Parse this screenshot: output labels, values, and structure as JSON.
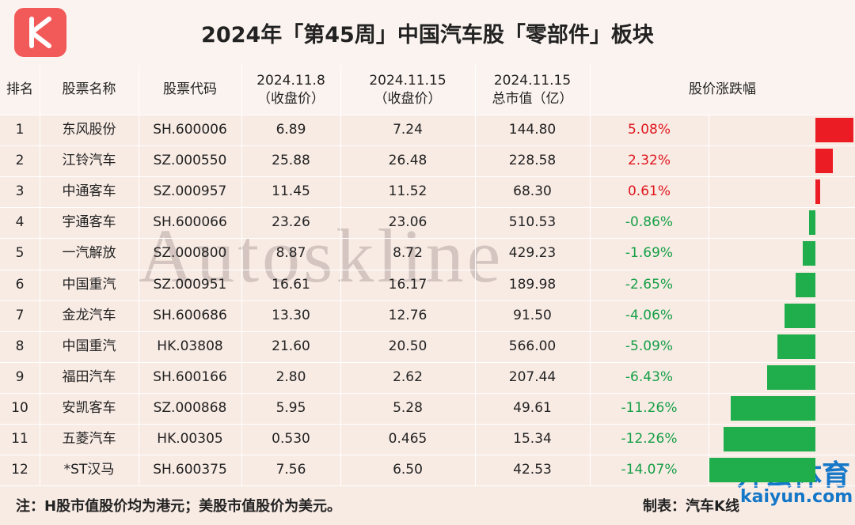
{
  "header": {
    "title": "2024年「第45周」中国汽车股「零部件」板块"
  },
  "table": {
    "columns": [
      [
        "排名"
      ],
      [
        "股票名称"
      ],
      [
        "股票代码"
      ],
      [
        "2024.11.8",
        "（收盘价）"
      ],
      [
        "2024.11.15",
        "（收盘价）"
      ],
      [
        "2024.11.15",
        "总市值（亿）"
      ],
      [
        "股价涨跌幅"
      ]
    ],
    "positive_color": "#ec1c24",
    "negative_color": "#1fae4b",
    "positive_text_color": "#e0161d",
    "negative_text_color": "#16a047",
    "rows": [
      {
        "cells": [
          "1",
          "东风股份",
          "SH.600006",
          "6.89",
          "7.24",
          "144.80"
        ],
        "change": {
          "value": 5.08,
          "label": "5.08%"
        }
      },
      {
        "cells": [
          "2",
          "江铃汽车",
          "SZ.000550",
          "25.88",
          "26.48",
          "228.58"
        ],
        "change": {
          "value": 2.32,
          "label": "2.32%"
        }
      },
      {
        "cells": [
          "3",
          "中通客车",
          "SZ.000957",
          "11.45",
          "11.52",
          "68.30"
        ],
        "change": {
          "value": 0.61,
          "label": "0.61%"
        }
      },
      {
        "cells": [
          "4",
          "宇通客车",
          "SH.600066",
          "23.26",
          "23.06",
          "510.53"
        ],
        "change": {
          "value": -0.86,
          "label": "-0.86%"
        }
      },
      {
        "cells": [
          "5",
          "一汽解放",
          "SZ.000800",
          "8.87",
          "8.72",
          "429.23"
        ],
        "change": {
          "value": -1.69,
          "label": "-1.69%"
        }
      },
      {
        "cells": [
          "6",
          "中国重汽",
          "SZ.000951",
          "16.61",
          "16.17",
          "189.98"
        ],
        "change": {
          "value": -2.65,
          "label": "-2.65%"
        }
      },
      {
        "cells": [
          "7",
          "金龙汽车",
          "SH.600686",
          "13.30",
          "12.76",
          "91.50"
        ],
        "change": {
          "value": -4.06,
          "label": "-4.06%"
        }
      },
      {
        "cells": [
          "8",
          "中国重汽",
          "HK.03808",
          "21.60",
          "20.50",
          "566.00"
        ],
        "change": {
          "value": -5.09,
          "label": "-5.09%"
        }
      },
      {
        "cells": [
          "9",
          "福田汽车",
          "SH.600166",
          "2.80",
          "2.62",
          "207.44"
        ],
        "change": {
          "value": -6.43,
          "label": "-6.43%"
        }
      },
      {
        "cells": [
          "10",
          "安凯客车",
          "SZ.000868",
          "5.95",
          "5.28",
          "49.61"
        ],
        "change": {
          "value": -11.26,
          "label": "-11.26%"
        }
      },
      {
        "cells": [
          "11",
          "五菱汽车",
          "HK.00305",
          "0.530",
          "0.465",
          "15.34"
        ],
        "change": {
          "value": -12.26,
          "label": "-12.26%"
        }
      },
      {
        "cells": [
          "12",
          "*ST汉马",
          "SH.600375",
          "7.56",
          "6.50",
          "42.53"
        ],
        "change": {
          "value": -14.07,
          "label": "-14.07%"
        }
      }
    ]
  },
  "footer": {
    "note": "注：H股市值股价均为港元；美股市值股价为美元。",
    "credit": "制表：汽车K线"
  },
  "watermark": {
    "text": "Autoskline",
    "brand": "开云体育",
    "site": "kaiyun.com"
  }
}
